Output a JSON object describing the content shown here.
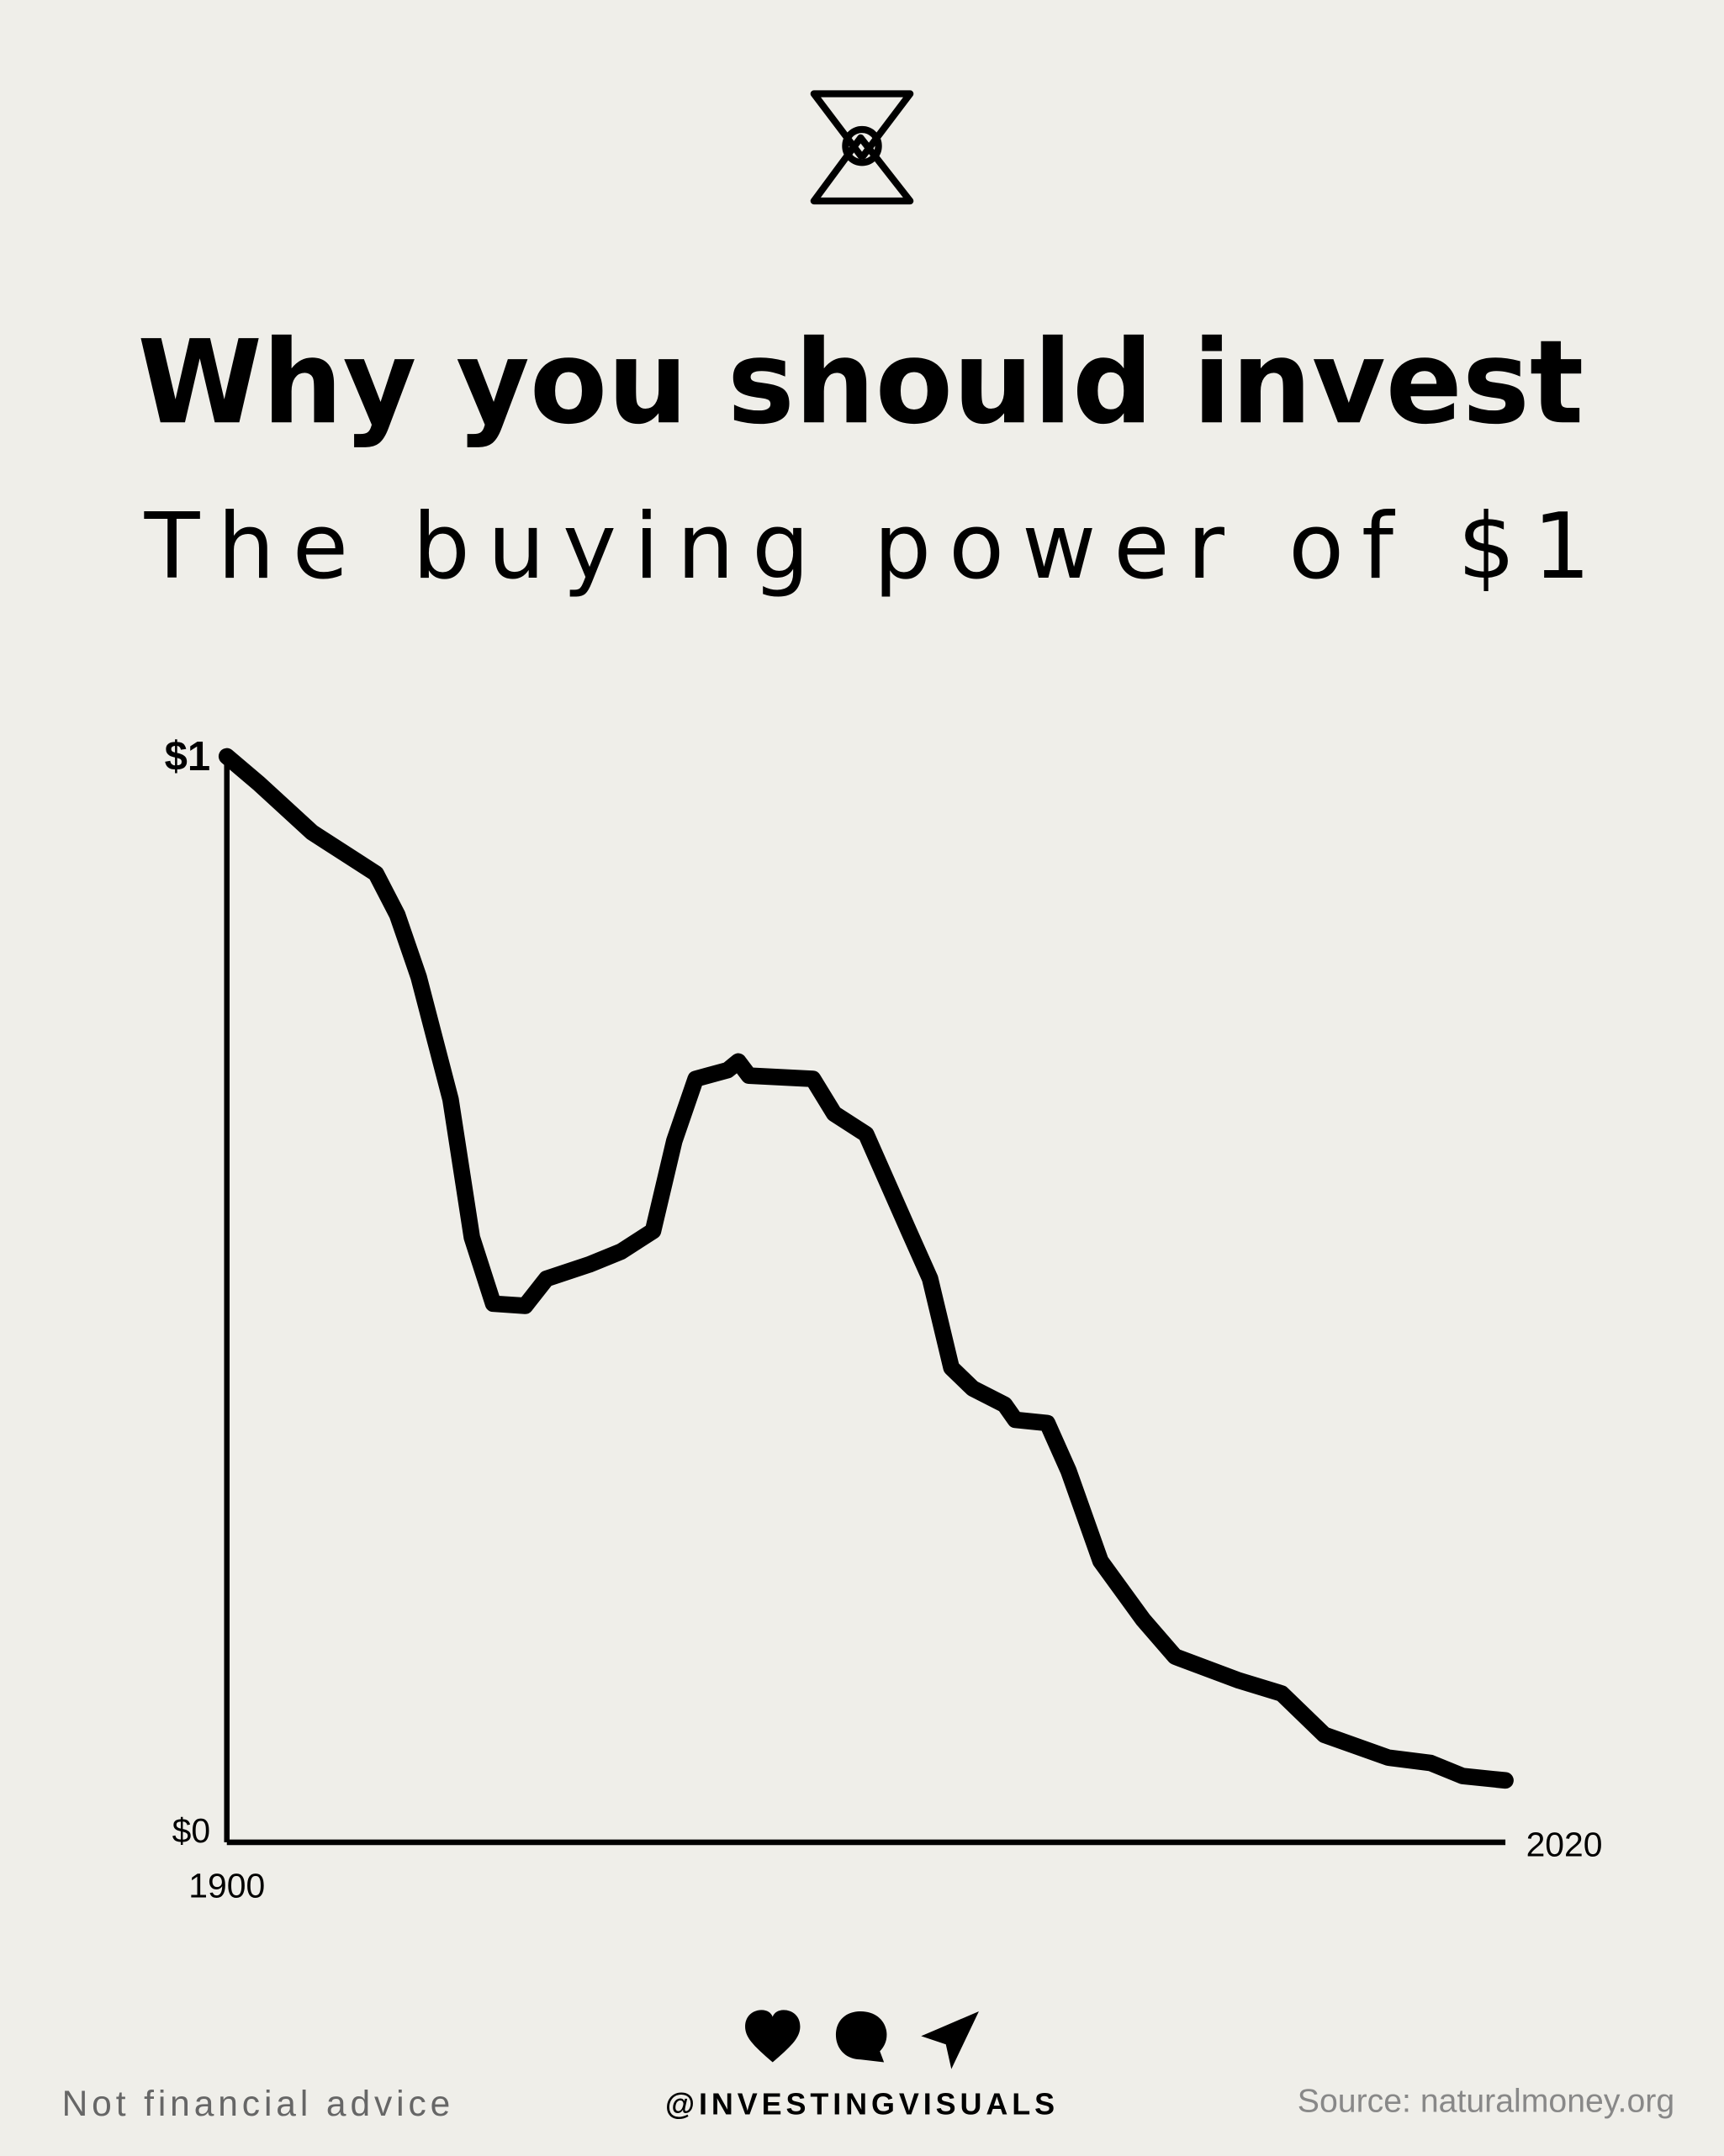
{
  "chart_data": {
    "type": "line",
    "title": "Why you should invest",
    "subtitle": "The buying power of $1",
    "x": [
      1900,
      1903,
      1908,
      1914,
      1916,
      1918,
      1921,
      1923,
      1925,
      1928,
      1930,
      1934,
      1937,
      1940,
      1942,
      1944,
      1947,
      1948,
      1949,
      1955,
      1957,
      1960,
      1964,
      1966,
      1968,
      1970,
      1973,
      1974,
      1977,
      1979,
      1982,
      1986,
      1989,
      1995,
      1999,
      2003,
      2009,
      2013,
      2016,
      2020
    ],
    "series": [
      {
        "name": "Buying power",
        "color": "#000000",
        "values": [
          1.0,
          0.975,
          0.93,
          0.892,
          0.854,
          0.797,
          0.684,
          0.557,
          0.496,
          0.494,
          0.519,
          0.532,
          0.544,
          0.563,
          0.646,
          0.703,
          0.711,
          0.719,
          0.706,
          0.703,
          0.671,
          0.652,
          0.563,
          0.519,
          0.437,
          0.418,
          0.403,
          0.389,
          0.386,
          0.342,
          0.259,
          0.205,
          0.171,
          0.149,
          0.137,
          0.099,
          0.078,
          0.073,
          0.061,
          0.057
        ]
      }
    ],
    "xlim": [
      1900,
      2020
    ],
    "xticks": [
      1900,
      2020
    ],
    "ylim": [
      0,
      1
    ],
    "yticks": [
      {
        "value": 1,
        "label": "$1"
      },
      {
        "value": 0,
        "label": "$0"
      }
    ],
    "grid": false
  },
  "footer": {
    "disclaimer": "Not financial advice",
    "handle": "@INVESTINGVISUALS",
    "source": "Source: naturalmoney.org"
  }
}
